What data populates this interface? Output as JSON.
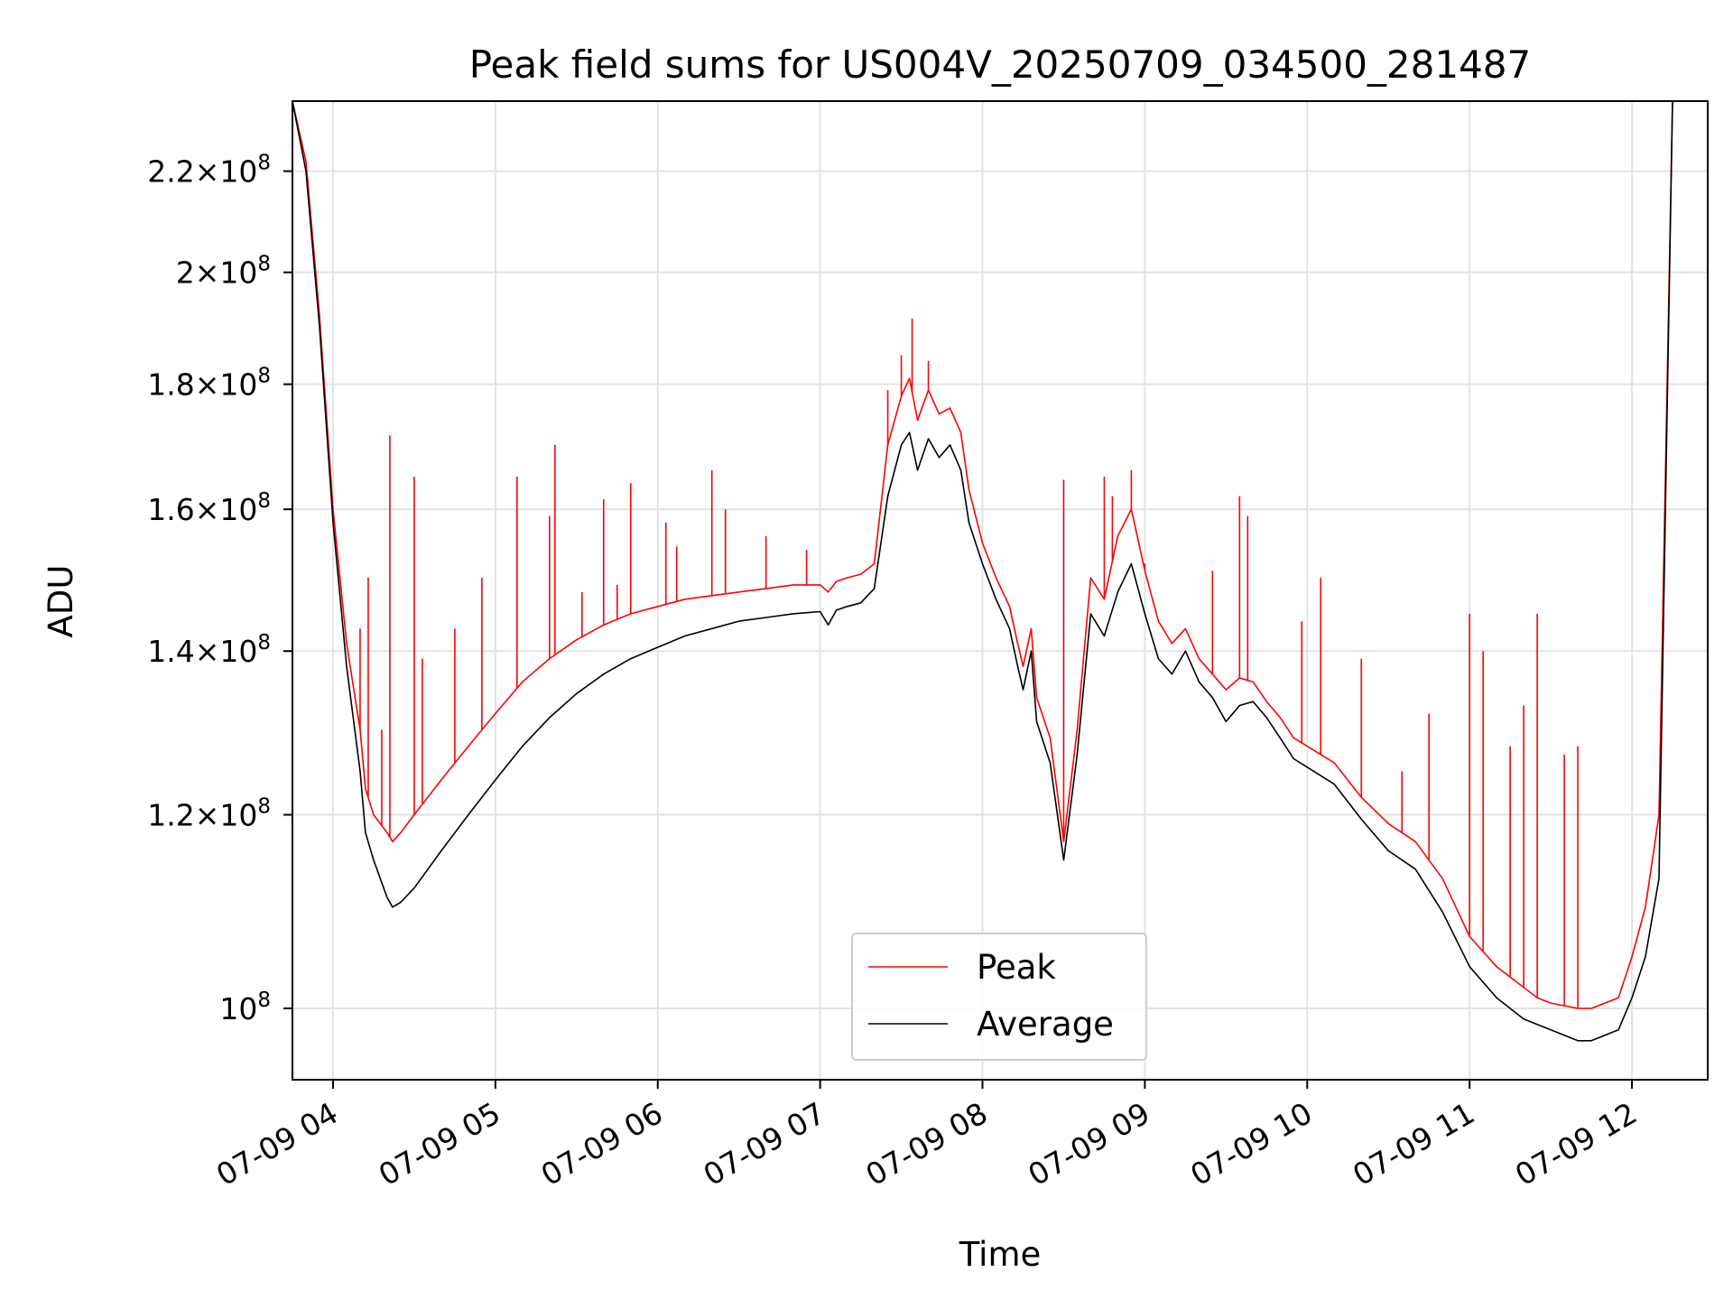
{
  "chart_data": {
    "type": "line",
    "title": "Peak field sums for US004V_20250709_034500_281487",
    "xlabel": "Time",
    "ylabel": "ADU",
    "yscale": "log",
    "ylim": [
      93500000,
      235000000
    ],
    "xlim": [
      "2025-07-09 03:45",
      "2025-07-09 12:28"
    ],
    "grid": true,
    "legend": {
      "placement": "lower center"
    },
    "x_ticks": [
      {
        "label": "07-09 04",
        "value": "2025-07-09 04:00"
      },
      {
        "label": "07-09 05",
        "value": "2025-07-09 05:00"
      },
      {
        "label": "07-09 06",
        "value": "2025-07-09 06:00"
      },
      {
        "label": "07-09 07",
        "value": "2025-07-09 07:00"
      },
      {
        "label": "07-09 08",
        "value": "2025-07-09 08:00"
      },
      {
        "label": "07-09 09",
        "value": "2025-07-09 09:00"
      },
      {
        "label": "07-09 10",
        "value": "2025-07-09 10:00"
      },
      {
        "label": "07-09 11",
        "value": "2025-07-09 11:00"
      },
      {
        "label": "07-09 12",
        "value": "2025-07-09 12:00"
      }
    ],
    "y_ticks": [
      {
        "mant": "",
        "exp": "8",
        "value": 100000000
      },
      {
        "mant": "1.2",
        "exp": "8",
        "value": 120000000
      },
      {
        "mant": "1.4",
        "exp": "8",
        "value": 140000000
      },
      {
        "mant": "1.6",
        "exp": "8",
        "value": 160000000
      },
      {
        "mant": "1.8",
        "exp": "8",
        "value": 180000000
      },
      {
        "mant": "2",
        "exp": "8",
        "value": 200000000
      },
      {
        "mant": "2.2",
        "exp": "8",
        "value": 220000000
      }
    ],
    "series": [
      {
        "name": "Average",
        "color": "#000000",
        "x": [
          "2025-07-09 03:45",
          "2025-07-09 03:50",
          "2025-07-09 03:55",
          "2025-07-09 04:00",
          "2025-07-09 04:05",
          "2025-07-09 04:10",
          "2025-07-09 04:12",
          "2025-07-09 04:15",
          "2025-07-09 04:20",
          "2025-07-09 04:22",
          "2025-07-09 04:25",
          "2025-07-09 04:30",
          "2025-07-09 04:40",
          "2025-07-09 04:50",
          "2025-07-09 05:00",
          "2025-07-09 05:10",
          "2025-07-09 05:20",
          "2025-07-09 05:30",
          "2025-07-09 05:40",
          "2025-07-09 05:50",
          "2025-07-09 06:00",
          "2025-07-09 06:10",
          "2025-07-09 06:20",
          "2025-07-09 06:30",
          "2025-07-09 06:40",
          "2025-07-09 06:50",
          "2025-07-09 07:00",
          "2025-07-09 07:03",
          "2025-07-09 07:06",
          "2025-07-09 07:10",
          "2025-07-09 07:15",
          "2025-07-09 07:20",
          "2025-07-09 07:25",
          "2025-07-09 07:30",
          "2025-07-09 07:33",
          "2025-07-09 07:36",
          "2025-07-09 07:40",
          "2025-07-09 07:44",
          "2025-07-09 07:48",
          "2025-07-09 07:52",
          "2025-07-09 07:55",
          "2025-07-09 08:00",
          "2025-07-09 08:05",
          "2025-07-09 08:10",
          "2025-07-09 08:13",
          "2025-07-09 08:15",
          "2025-07-09 08:18",
          "2025-07-09 08:20",
          "2025-07-09 08:25",
          "2025-07-09 08:30",
          "2025-07-09 08:35",
          "2025-07-09 08:40",
          "2025-07-09 08:45",
          "2025-07-09 08:50",
          "2025-07-09 08:55",
          "2025-07-09 09:00",
          "2025-07-09 09:05",
          "2025-07-09 09:10",
          "2025-07-09 09:15",
          "2025-07-09 09:20",
          "2025-07-09 09:25",
          "2025-07-09 09:30",
          "2025-07-09 09:35",
          "2025-07-09 09:40",
          "2025-07-09 09:45",
          "2025-07-09 09:50",
          "2025-07-09 09:55",
          "2025-07-09 10:00",
          "2025-07-09 10:10",
          "2025-07-09 10:20",
          "2025-07-09 10:30",
          "2025-07-09 10:40",
          "2025-07-09 10:50",
          "2025-07-09 11:00",
          "2025-07-09 11:10",
          "2025-07-09 11:20",
          "2025-07-09 11:25",
          "2025-07-09 11:30",
          "2025-07-09 11:40",
          "2025-07-09 11:45",
          "2025-07-09 11:50",
          "2025-07-09 11:55",
          "2025-07-09 12:00",
          "2025-07-09 12:05",
          "2025-07-09 12:10",
          "2025-07-09 12:15"
        ],
        "values": [
          235000000,
          220000000,
          190000000,
          158000000,
          138000000,
          125000000,
          118000000,
          115000000,
          111000000,
          110000000,
          110500000,
          112000000,
          116000000,
          120000000,
          124000000,
          128000000,
          131500000,
          134500000,
          137000000,
          139000000,
          140500000,
          142000000,
          143000000,
          144000000,
          144500000,
          145000000,
          145300000,
          143500000,
          145500000,
          146000000,
          146500000,
          148500000,
          162000000,
          170000000,
          172000000,
          166000000,
          171000000,
          168000000,
          170000000,
          166000000,
          158000000,
          152000000,
          147000000,
          143000000,
          138000000,
          135000000,
          140000000,
          131000000,
          126000000,
          115000000,
          127000000,
          145000000,
          142000000,
          148000000,
          152000000,
          145000000,
          139000000,
          137000000,
          140000000,
          136000000,
          134000000,
          131000000,
          133000000,
          133500000,
          131500000,
          129000000,
          126500000,
          125500000,
          123500000,
          119500000,
          116000000,
          114000000,
          109500000,
          104000000,
          101000000,
          99000000,
          98500000,
          98000000,
          97000000,
          97000000,
          97500000,
          98000000,
          101000000,
          105000000,
          113000000,
          235000000
        ]
      },
      {
        "name": "Peak",
        "color": "#ff0000",
        "x": [
          "2025-07-09 03:45",
          "2025-07-09 03:50",
          "2025-07-09 03:55",
          "2025-07-09 04:00",
          "2025-07-09 04:05",
          "2025-07-09 04:10",
          "2025-07-09 04:12",
          "2025-07-09 04:15",
          "2025-07-09 04:20",
          "2025-07-09 04:22",
          "2025-07-09 04:25",
          "2025-07-09 04:30",
          "2025-07-09 04:40",
          "2025-07-09 04:50",
          "2025-07-09 05:00",
          "2025-07-09 05:10",
          "2025-07-09 05:20",
          "2025-07-09 05:30",
          "2025-07-09 05:40",
          "2025-07-09 05:50",
          "2025-07-09 06:00",
          "2025-07-09 06:10",
          "2025-07-09 06:20",
          "2025-07-09 06:30",
          "2025-07-09 06:40",
          "2025-07-09 06:50",
          "2025-07-09 07:00",
          "2025-07-09 07:03",
          "2025-07-09 07:06",
          "2025-07-09 07:10",
          "2025-07-09 07:15",
          "2025-07-09 07:20",
          "2025-07-09 07:25",
          "2025-07-09 07:30",
          "2025-07-09 07:33",
          "2025-07-09 07:36",
          "2025-07-09 07:40",
          "2025-07-09 07:44",
          "2025-07-09 07:48",
          "2025-07-09 07:52",
          "2025-07-09 07:55",
          "2025-07-09 08:00",
          "2025-07-09 08:05",
          "2025-07-09 08:10",
          "2025-07-09 08:13",
          "2025-07-09 08:15",
          "2025-07-09 08:18",
          "2025-07-09 08:20",
          "2025-07-09 08:25",
          "2025-07-09 08:30",
          "2025-07-09 08:35",
          "2025-07-09 08:40",
          "2025-07-09 08:45",
          "2025-07-09 08:50",
          "2025-07-09 08:55",
          "2025-07-09 09:00",
          "2025-07-09 09:05",
          "2025-07-09 09:10",
          "2025-07-09 09:15",
          "2025-07-09 09:20",
          "2025-07-09 09:25",
          "2025-07-09 09:30",
          "2025-07-09 09:35",
          "2025-07-09 09:40",
          "2025-07-09 09:45",
          "2025-07-09 09:50",
          "2025-07-09 09:55",
          "2025-07-09 10:00",
          "2025-07-09 10:10",
          "2025-07-09 10:20",
          "2025-07-09 10:30",
          "2025-07-09 10:40",
          "2025-07-09 10:50",
          "2025-07-09 11:00",
          "2025-07-09 11:10",
          "2025-07-09 11:20",
          "2025-07-09 11:25",
          "2025-07-09 11:30",
          "2025-07-09 11:40",
          "2025-07-09 11:45",
          "2025-07-09 11:50",
          "2025-07-09 11:55",
          "2025-07-09 12:00",
          "2025-07-09 12:05",
          "2025-07-09 12:10",
          "2025-07-09 12:15"
        ],
        "values": [
          235000000,
          222000000,
          192000000,
          160000000,
          141000000,
          130000000,
          123000000,
          120000000,
          118000000,
          117000000,
          118000000,
          120000000,
          124000000,
          128000000,
          132000000,
          136000000,
          139000000,
          141500000,
          143500000,
          145000000,
          146000000,
          147000000,
          147500000,
          148000000,
          148500000,
          149000000,
          149000000,
          148000000,
          149500000,
          150000000,
          150500000,
          152000000,
          170000000,
          178000000,
          181000000,
          174000000,
          179000000,
          175000000,
          176000000,
          172000000,
          163000000,
          155000000,
          150000000,
          146000000,
          141000000,
          138000000,
          143000000,
          134000000,
          129000000,
          117000000,
          130000000,
          150000000,
          147000000,
          156000000,
          160000000,
          151000000,
          144000000,
          141000000,
          143000000,
          139000000,
          137000000,
          135000000,
          136500000,
          136000000,
          133500000,
          131500000,
          129000000,
          128000000,
          126000000,
          122000000,
          119000000,
          117000000,
          113000000,
          107000000,
          104000000,
          102000000,
          101000000,
          100500000,
          100000000,
          100000000,
          100500000,
          101000000,
          105000000,
          110000000,
          120000000,
          235000000
        ]
      }
    ],
    "spikes": {
      "color": "#ff0000",
      "x": [
        "2025-07-09 04:10",
        "2025-07-09 04:13",
        "2025-07-09 04:18",
        "2025-07-09 04:21",
        "2025-07-09 04:30",
        "2025-07-09 04:33",
        "2025-07-09 04:45",
        "2025-07-09 04:55",
        "2025-07-09 05:08",
        "2025-07-09 05:20",
        "2025-07-09 05:22",
        "2025-07-09 05:32",
        "2025-07-09 05:40",
        "2025-07-09 05:45",
        "2025-07-09 05:50",
        "2025-07-09 06:03",
        "2025-07-09 06:07",
        "2025-07-09 06:20",
        "2025-07-09 06:25",
        "2025-07-09 06:40",
        "2025-07-09 06:55",
        "2025-07-09 07:25",
        "2025-07-09 07:30",
        "2025-07-09 07:34",
        "2025-07-09 07:40",
        "2025-07-09 08:30",
        "2025-07-09 08:45",
        "2025-07-09 08:48",
        "2025-07-09 08:55",
        "2025-07-09 09:00",
        "2025-07-09 09:25",
        "2025-07-09 09:35",
        "2025-07-09 09:38",
        "2025-07-09 09:58",
        "2025-07-09 10:05",
        "2025-07-09 10:20",
        "2025-07-09 10:35",
        "2025-07-09 10:45",
        "2025-07-09 11:00",
        "2025-07-09 11:05",
        "2025-07-09 11:15",
        "2025-07-09 11:20",
        "2025-07-09 11:25",
        "2025-07-09 11:35",
        "2025-07-09 11:40"
      ],
      "values": [
        143000000,
        150000000,
        130000000,
        171500000,
        165000000,
        139000000,
        143000000,
        150000000,
        165000000,
        159000000,
        170000000,
        148000000,
        161500000,
        149000000,
        164000000,
        158000000,
        154500000,
        166000000,
        160000000,
        156000000,
        154000000,
        179000000,
        185000000,
        191500000,
        184000000,
        164500000,
        165000000,
        162000000,
        166000000,
        152000000,
        151000000,
        162000000,
        159000000,
        144000000,
        150000000,
        139000000,
        125000000,
        132000000,
        145000000,
        140000000,
        128000000,
        133000000,
        145000000,
        127000000,
        128000000
      ]
    }
  },
  "legend_items": [
    {
      "label": "Peak",
      "color": "#ff0000"
    },
    {
      "label": "Average",
      "color": "#000000"
    }
  ]
}
